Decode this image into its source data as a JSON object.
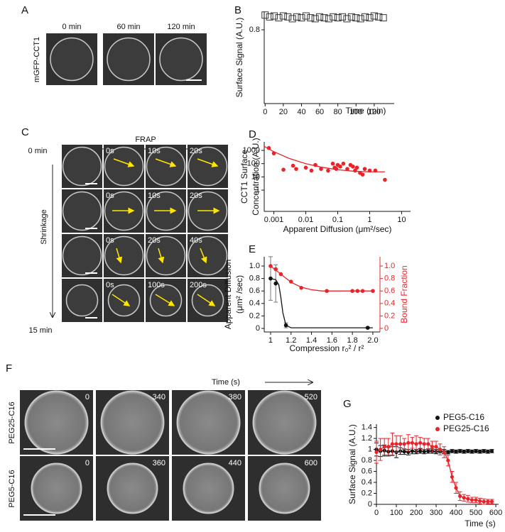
{
  "panel_a": {
    "label": "A",
    "ylabel": "mGFP-CCT1",
    "times": [
      "0 min",
      "60 min",
      "120 min"
    ]
  },
  "panel_c": {
    "label": "C",
    "top": "FRAP",
    "start": "0 min",
    "side": "Shrinkage",
    "end": "15 min",
    "rows": [
      [
        "0s",
        "10s",
        "20s"
      ],
      [
        "0s",
        "10s",
        "20s"
      ],
      [
        "0s",
        "20s",
        "40s"
      ],
      [
        "0s",
        "100s",
        "200s"
      ]
    ]
  },
  "panel_f": {
    "label": "F",
    "top": "Time (s)",
    "rows": [
      {
        "name": "PEG25-C16",
        "times": [
          "0",
          "340",
          "380",
          "520"
        ]
      },
      {
        "name": "PEG5-C16",
        "times": [
          "0",
          "360",
          "440",
          "600"
        ]
      }
    ]
  },
  "chart_data": [
    {
      "type": "scatter",
      "label": "B",
      "ylabel": [
        "Surface Signal (A.U.)"
      ],
      "xlabel": "Time (min)",
      "xlim": [
        -1,
        142
      ],
      "ylim": [
        0,
        1
      ],
      "xticks": [
        0,
        20,
        40,
        60,
        80,
        100,
        120
      ],
      "yticks": [
        0.8
      ],
      "series": [
        {
          "color": "#333333",
          "marker": "square-open",
          "x": [
            0,
            5,
            10,
            15,
            20,
            25,
            30,
            35,
            40,
            45,
            50,
            55,
            60,
            65,
            70,
            75,
            80,
            85,
            90,
            95,
            100,
            105,
            110,
            115,
            120,
            125,
            130
          ],
          "values": [
            0.96,
            0.94,
            0.95,
            0.93,
            0.95,
            0.94,
            0.92,
            0.94,
            0.93,
            0.95,
            0.93,
            0.92,
            0.94,
            0.93,
            0.92,
            0.94,
            0.93,
            0.94,
            0.92,
            0.94,
            0.93,
            0.92,
            0.94,
            0.93,
            0.95,
            0.94,
            0.93
          ]
        }
      ]
    },
    {
      "type": "scatter",
      "label": "D",
      "ylabel": [
        "CCT1 Surface",
        "Concentration (A.U.)"
      ],
      "xlabel": "Apparent Diffusion (μm²/sec)",
      "xscale": "log",
      "yscale": "log",
      "xlim": [
        0.0005,
        19
      ],
      "ylim": [
        0.025,
        4400
      ],
      "xticks": [
        0.001,
        0.01,
        0.1,
        1,
        10
      ],
      "yticks": [
        1,
        10,
        100,
        1000
      ],
      "series": [
        {
          "color": "#e8242a",
          "marker": "circle",
          "x": [
            0.0007,
            0.001,
            0.002,
            0.004,
            0.005,
            0.01,
            0.015,
            0.02,
            0.03,
            0.05,
            0.07,
            0.08,
            0.09,
            0.1,
            0.12,
            0.15,
            0.2,
            0.25,
            0.3,
            0.35,
            0.4,
            0.5,
            0.6,
            0.7,
            1,
            1.5,
            3
          ],
          "values": [
            1500,
            600,
            35,
            70,
            40,
            50,
            30,
            80,
            40,
            30,
            100,
            50,
            40,
            80,
            60,
            100,
            40,
            80,
            60,
            30,
            50,
            20,
            15,
            40,
            30,
            30,
            6
          ]
        },
        {
          "color": "#e8242a",
          "marker": "line",
          "x": [
            0.0005,
            0.001,
            0.003,
            0.01,
            0.03,
            0.1,
            0.3,
            1,
            3
          ],
          "values": [
            2000,
            800,
            250,
            100,
            55,
            35,
            27,
            24,
            24
          ]
        }
      ]
    },
    {
      "type": "scatter",
      "label": "E",
      "ylabel": [
        "Apparent Diffusion",
        "(μm² /sec)"
      ],
      "y2label": "Bound Fraction",
      "y2color": "#e8242a",
      "xlabel": "Compression  r₀² / r²",
      "xlim": [
        0.9375,
        2.07
      ],
      "ylim": [
        -0.057,
        1.148
      ],
      "y2lim": [
        -0.057,
        1.148
      ],
      "xticks": [
        1,
        1.2,
        1.4,
        1.6,
        1.8,
        {
          "value": 2,
          "label": "2.0"
        }
      ],
      "yticks": [
        0,
        0.2,
        0.4,
        0.6,
        0.8,
        {
          "value": 1,
          "label": "1.0"
        }
      ],
      "y2ticks": [
        0,
        0.2,
        0.4,
        0.6,
        0.8,
        {
          "value": 1,
          "label": "1.0"
        }
      ],
      "series": [
        {
          "color": "#111111",
          "marker": "circle",
          "x": [
            1,
            1.05,
            1.15,
            1.95
          ],
          "values": [
            0.8,
            0.72,
            0.05,
            0.01
          ],
          "errors": [
            0.35,
            0.3,
            0.04,
            0.01
          ]
        },
        {
          "color": "#111111",
          "marker": "line",
          "x": [
            1,
            1.05,
            1.08,
            1.1,
            1.12,
            1.15,
            1.2,
            2
          ],
          "values": [
            0.8,
            0.78,
            0.7,
            0.5,
            0.25,
            0.05,
            0.01,
            0.01
          ]
        },
        {
          "color": "#e8242a",
          "marker": "circle",
          "axis": "y2",
          "x": [
            1,
            1.05,
            1.1,
            1.2,
            1.3,
            1.55,
            1.8,
            1.85,
            1.9,
            2
          ],
          "values": [
            1,
            0.95,
            0.87,
            0.75,
            0.65,
            0.6,
            0.6,
            0.6,
            0.6,
            0.6
          ]
        },
        {
          "color": "#e8242a",
          "marker": "line",
          "axis": "y2",
          "x": [
            1,
            1.1,
            1.2,
            1.3,
            1.4,
            1.5,
            2
          ],
          "values": [
            1,
            0.87,
            0.74,
            0.66,
            0.62,
            0.6,
            0.6
          ]
        }
      ]
    },
    {
      "type": "line",
      "label": "G",
      "ylabel": [
        "Surface Signal (A.U.)"
      ],
      "xlabel": "Time (s)",
      "xlim": [
        0,
        614
      ],
      "ylim": [
        0,
        1.46
      ],
      "xticks": [
        0,
        100,
        200,
        300,
        400,
        500,
        600
      ],
      "yticks": [
        0,
        0.2,
        0.4,
        0.6,
        0.8,
        1,
        1.2,
        1.4
      ],
      "legend": "top-right",
      "series": [
        {
          "name": "PEG5-C16",
          "color": "#111111",
          "x": [
            0,
            20,
            40,
            60,
            80,
            100,
            120,
            140,
            160,
            180,
            200,
            220,
            240,
            260,
            280,
            300,
            320,
            340,
            360,
            380,
            400,
            420,
            440,
            460,
            480,
            500,
            520,
            540,
            560,
            580
          ],
          "values": [
            1,
            0.97,
            0.98,
            0.96,
            0.97,
            0.95,
            0.97,
            0.96,
            0.95,
            0.97,
            0.96,
            0.97,
            0.96,
            0.97,
            0.97,
            0.96,
            0.97,
            0.96,
            0.95,
            0.97,
            0.96,
            0.97,
            0.96,
            0.97,
            0.96,
            0.97,
            0.96,
            0.97,
            0.96,
            0.97
          ],
          "errors": [
            0.12,
            0.1,
            0.1,
            0.08,
            0.08,
            0.1,
            0.06,
            0.05,
            0.05,
            0.05,
            0.04,
            0.04,
            0.04,
            0.04,
            0.04,
            0.04,
            0.03,
            0.04,
            0.03,
            0.03,
            0.03,
            0.03,
            0.03,
            0.03,
            0.03,
            0.03,
            0.03,
            0.03,
            0.03,
            0.03
          ]
        },
        {
          "name": "PEG25-C16",
          "color": "#e8242a",
          "x": [
            0,
            20,
            40,
            60,
            80,
            100,
            120,
            140,
            160,
            180,
            200,
            220,
            240,
            260,
            280,
            300,
            320,
            340,
            360,
            380,
            400,
            420,
            440,
            460,
            480,
            500,
            520,
            540,
            560,
            580
          ],
          "values": [
            0.95,
            1,
            1.05,
            1.05,
            1.1,
            1.1,
            1.1,
            1.1,
            1.12,
            1.12,
            1.1,
            1.12,
            1.1,
            1.1,
            1.05,
            1.05,
            1,
            0.95,
            0.8,
            0.5,
            0.3,
            0.15,
            0.12,
            0.1,
            0.08,
            0.08,
            0.06,
            0.05,
            0.05,
            0.05
          ],
          "errors": [
            0.2,
            0.2,
            0.15,
            0.15,
            0.2,
            0.15,
            0.15,
            0.1,
            0.15,
            0.1,
            0.15,
            0.1,
            0.1,
            0.1,
            0.1,
            0.1,
            0.1,
            0.1,
            0.1,
            0.1,
            0.1,
            0.08,
            0.06,
            0.06,
            0.05,
            0.05,
            0.05,
            0.05,
            0.04,
            0.04
          ]
        }
      ]
    }
  ]
}
